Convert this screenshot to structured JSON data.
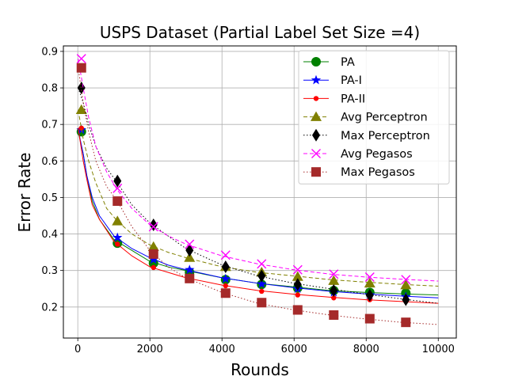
{
  "chart_data": {
    "type": "line",
    "title": "USPS Dataset (Partial Label Set Size =4)",
    "xlabel": "Rounds",
    "ylabel": "Error Rate",
    "xlim": [
      -400,
      10500
    ],
    "ylim": [
      0.115,
      0.915
    ],
    "xticks": [
      0,
      2000,
      4000,
      6000,
      8000,
      10000
    ],
    "xtick_labels": [
      "0",
      "2000",
      "4000",
      "6000",
      "8000",
      "10000"
    ],
    "yticks": [
      0.2,
      0.3,
      0.4,
      0.5,
      0.6,
      0.7,
      0.8,
      0.9
    ],
    "ytick_labels": [
      "0.2",
      "0.3",
      "0.4",
      "0.5",
      "0.6",
      "0.7",
      "0.8",
      "0.9"
    ],
    "grid": true,
    "legend_position": "top-right",
    "marker_x": [
      100,
      1100,
      2100,
      3100,
      4100,
      5100,
      6100,
      7100,
      8100,
      9100
    ],
    "series": [
      {
        "name": "PA",
        "color": "#008000",
        "line_style": "solid",
        "marker": "circle",
        "x": [
          10,
          150,
          250,
          400,
          600,
          1000,
          1500,
          2000,
          2500,
          3000,
          4000,
          5000,
          6000,
          7000,
          8000,
          9000,
          10000
        ],
        "values": [
          0.68,
          0.62,
          0.56,
          0.49,
          0.44,
          0.385,
          0.355,
          0.325,
          0.31,
          0.3,
          0.28,
          0.265,
          0.255,
          0.245,
          0.24,
          0.236,
          0.233
        ],
        "marker_values": [
          0.68,
          0.375,
          0.32,
          0.295,
          0.275,
          0.262,
          0.252,
          0.245,
          0.24,
          0.238
        ]
      },
      {
        "name": "PA-I",
        "color": "#0000ff",
        "line_style": "solid",
        "marker": "star",
        "x": [
          10,
          150,
          250,
          400,
          600,
          1000,
          1500,
          2000,
          2500,
          3000,
          4000,
          5000,
          6000,
          7000,
          8000,
          9000,
          10000
        ],
        "values": [
          0.685,
          0.62,
          0.56,
          0.5,
          0.45,
          0.395,
          0.36,
          0.335,
          0.315,
          0.302,
          0.28,
          0.265,
          0.253,
          0.243,
          0.236,
          0.23,
          0.225
        ],
        "marker_values": [
          0.685,
          0.39,
          0.33,
          0.302,
          0.277,
          0.263,
          0.25,
          0.24,
          0.233,
          0.228
        ]
      },
      {
        "name": "PA-II",
        "color": "#ff0000",
        "line_style": "solid",
        "marker": "dot",
        "x": [
          10,
          150,
          250,
          400,
          600,
          1000,
          1500,
          2000,
          2500,
          3000,
          4000,
          5000,
          6000,
          7000,
          8000,
          9000,
          10000
        ],
        "values": [
          0.69,
          0.6,
          0.55,
          0.48,
          0.44,
          0.38,
          0.34,
          0.31,
          0.295,
          0.28,
          0.26,
          0.245,
          0.235,
          0.227,
          0.22,
          0.215,
          0.21
        ],
        "marker_values": [
          0.69,
          0.372,
          0.308,
          0.28,
          0.258,
          0.243,
          0.233,
          0.225,
          0.22,
          0.215
        ]
      },
      {
        "name": "Avg Perceptron",
        "color": "#808000",
        "line_style": "dashed",
        "marker": "triangle",
        "x": [
          10,
          150,
          300,
          500,
          800,
          1100,
          1500,
          2000,
          2500,
          3000,
          4000,
          5000,
          6000,
          7000,
          8000,
          9000,
          10000
        ],
        "values": [
          0.74,
          0.66,
          0.6,
          0.54,
          0.47,
          0.435,
          0.4,
          0.37,
          0.35,
          0.335,
          0.31,
          0.295,
          0.285,
          0.275,
          0.268,
          0.262,
          0.257
        ],
        "marker_values": [
          0.74,
          0.435,
          0.365,
          0.335,
          0.31,
          0.295,
          0.283,
          0.272,
          0.265,
          0.26
        ]
      },
      {
        "name": "Max Perceptron",
        "color": "#000000",
        "line_style": "dotted",
        "marker": "diamond",
        "x": [
          10,
          150,
          300,
          500,
          800,
          1100,
          1500,
          2000,
          2500,
          3000,
          4000,
          5000,
          6000,
          7000,
          8000,
          9000,
          10000
        ],
        "values": [
          0.8,
          0.76,
          0.7,
          0.64,
          0.58,
          0.54,
          0.48,
          0.43,
          0.395,
          0.36,
          0.315,
          0.285,
          0.265,
          0.25,
          0.235,
          0.222,
          0.21
        ],
        "marker_values": [
          0.8,
          0.545,
          0.425,
          0.355,
          0.31,
          0.285,
          0.262,
          0.245,
          0.232,
          0.22
        ]
      },
      {
        "name": "Avg Pegasos",
        "color": "#ff00ff",
        "line_style": "dashed",
        "marker": "x",
        "x": [
          10,
          150,
          300,
          500,
          800,
          1100,
          1500,
          2000,
          2500,
          3000,
          4000,
          5000,
          6000,
          7000,
          8000,
          9000,
          10000
        ],
        "values": [
          0.88,
          0.8,
          0.72,
          0.64,
          0.57,
          0.52,
          0.47,
          0.425,
          0.395,
          0.372,
          0.34,
          0.318,
          0.302,
          0.29,
          0.282,
          0.276,
          0.271
        ],
        "marker_values": [
          0.88,
          0.525,
          0.42,
          0.372,
          0.342,
          0.318,
          0.302,
          0.29,
          0.282,
          0.275
        ]
      },
      {
        "name": "Max Pegasos",
        "color": "#a52a2a",
        "line_style": "dotted",
        "marker": "square",
        "x": [
          10,
          150,
          300,
          500,
          800,
          1100,
          1500,
          2000,
          2500,
          3000,
          4000,
          5000,
          6000,
          7000,
          8000,
          9000,
          10000
        ],
        "values": [
          0.855,
          0.76,
          0.68,
          0.6,
          0.53,
          0.49,
          0.42,
          0.355,
          0.31,
          0.28,
          0.24,
          0.21,
          0.192,
          0.178,
          0.167,
          0.158,
          0.152
        ],
        "marker_values": [
          0.855,
          0.49,
          0.345,
          0.278,
          0.238,
          0.212,
          0.192,
          0.178,
          0.168,
          0.158
        ]
      }
    ]
  }
}
